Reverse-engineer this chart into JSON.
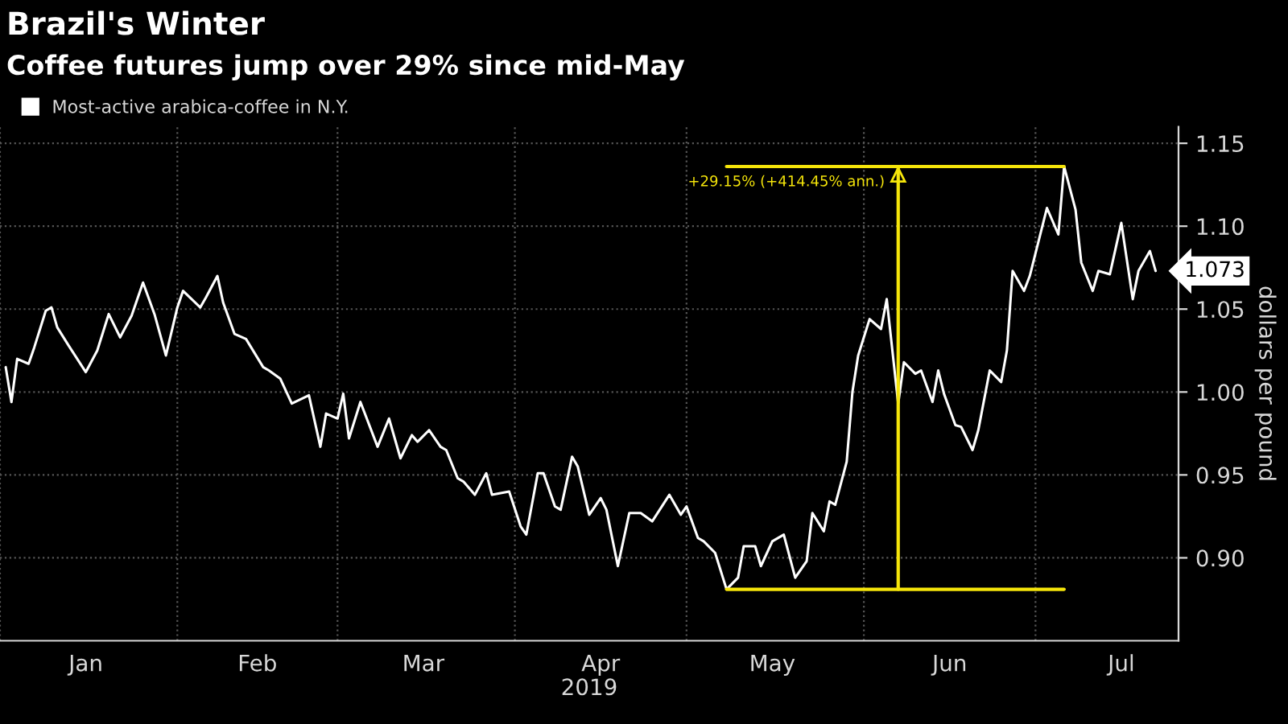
{
  "chart_data": {
    "type": "line",
    "title": "Brazil's Winter",
    "subtitle": "Coffee futures jump over 29% since mid-May",
    "xlabel": "2019",
    "ylabel": "dollars per pound",
    "x": [
      "2019-01-02",
      "2019-01-03",
      "2019-01-04",
      "2019-01-06",
      "2019-01-07",
      "2019-01-09",
      "2019-01-10",
      "2019-01-11",
      "2019-01-13",
      "2019-01-16",
      "2019-01-18",
      "2019-01-20",
      "2019-01-22",
      "2019-01-24",
      "2019-01-26",
      "2019-01-28",
      "2019-01-30",
      "2019-02-01",
      "2019-02-02",
      "2019-02-05",
      "2019-02-06",
      "2019-02-08",
      "2019-02-09",
      "2019-02-11",
      "2019-02-13",
      "2019-02-16",
      "2019-02-17",
      "2019-02-19",
      "2019-02-21",
      "2019-02-24",
      "2019-02-26",
      "2019-02-27",
      "2019-03-01",
      "2019-03-02",
      "2019-03-03",
      "2019-03-05",
      "2019-03-08",
      "2019-03-10",
      "2019-03-12",
      "2019-03-14",
      "2019-03-15",
      "2019-03-17",
      "2019-03-19",
      "2019-03-20",
      "2019-03-22",
      "2019-03-23",
      "2019-03-25",
      "2019-03-27",
      "2019-03-28",
      "2019-03-31",
      "2019-04-02",
      "2019-04-03",
      "2019-04-05",
      "2019-04-06",
      "2019-04-08",
      "2019-04-09",
      "2019-04-11",
      "2019-04-12",
      "2019-04-14",
      "2019-04-16",
      "2019-04-17",
      "2019-04-19",
      "2019-04-21",
      "2019-04-23",
      "2019-04-25",
      "2019-04-28",
      "2019-04-30",
      "2019-05-01",
      "2019-05-03",
      "2019-05-04",
      "2019-05-06",
      "2019-05-08",
      "2019-05-10",
      "2019-05-11",
      "2019-05-13",
      "2019-05-14",
      "2019-05-16",
      "2019-05-18",
      "2019-05-20",
      "2019-05-22",
      "2019-05-23",
      "2019-05-25",
      "2019-05-26",
      "2019-05-27",
      "2019-05-29",
      "2019-05-30",
      "2019-05-31",
      "2019-06-02",
      "2019-06-04",
      "2019-06-05",
      "2019-06-07",
      "2019-06-08",
      "2019-06-10",
      "2019-06-11",
      "2019-06-13",
      "2019-06-14",
      "2019-06-15",
      "2019-06-17",
      "2019-06-18",
      "2019-06-20",
      "2019-06-21",
      "2019-06-23",
      "2019-06-25",
      "2019-06-26",
      "2019-06-27",
      "2019-06-29",
      "2019-06-30",
      "2019-07-03",
      "2019-07-05",
      "2019-07-06",
      "2019-07-08",
      "2019-07-09",
      "2019-07-11",
      "2019-07-12",
      "2019-07-14",
      "2019-07-16",
      "2019-07-18",
      "2019-07-19",
      "2019-07-21",
      "2019-07-22"
    ],
    "series": [
      {
        "name": "Most-active arabica-coffee in N.Y.",
        "color": "#ffffff",
        "values": [
          1.015,
          0.994,
          1.02,
          1.017,
          1.027,
          1.049,
          1.051,
          1.039,
          1.028,
          1.012,
          1.025,
          1.047,
          1.033,
          1.046,
          1.066,
          1.047,
          1.022,
          1.051,
          1.061,
          1.051,
          1.057,
          1.07,
          1.054,
          1.035,
          1.032,
          1.015,
          1.013,
          1.008,
          0.993,
          0.998,
          0.967,
          0.987,
          0.984,
          0.999,
          0.972,
          0.994,
          0.967,
          0.984,
          0.96,
          0.974,
          0.97,
          0.977,
          0.967,
          0.965,
          0.948,
          0.946,
          0.938,
          0.951,
          0.938,
          0.94,
          0.919,
          0.914,
          0.951,
          0.951,
          0.931,
          0.929,
          0.961,
          0.955,
          0.926,
          0.936,
          0.929,
          0.895,
          0.927,
          0.927,
          0.922,
          0.938,
          0.926,
          0.931,
          0.912,
          0.91,
          0.903,
          0.881,
          0.888,
          0.907,
          0.907,
          0.895,
          0.91,
          0.914,
          0.888,
          0.898,
          0.927,
          0.916,
          0.934,
          0.932,
          0.958,
          1.0,
          1.022,
          1.044,
          1.038,
          1.056,
          0.993,
          1.018,
          1.011,
          1.013,
          0.994,
          1.013,
          0.999,
          0.98,
          0.979,
          0.965,
          0.977,
          1.013,
          1.006,
          1.025,
          1.073,
          1.061,
          1.07,
          1.111,
          1.095,
          1.136,
          1.11,
          1.078,
          1.061,
          1.073,
          1.071,
          1.102,
          1.056,
          1.073,
          1.085,
          1.073
        ]
      }
    ],
    "xlim": [
      "2019-01-01",
      "2019-07-26"
    ],
    "xticks": [
      {
        "value": "2019-01-01",
        "label": null
      },
      {
        "value": "2019-01-16",
        "label": "Jan"
      },
      {
        "value": "2019-02-01",
        "label": null
      },
      {
        "value": "2019-02-15",
        "label": "Feb"
      },
      {
        "value": "2019-03-01",
        "label": null
      },
      {
        "value": "2019-03-16",
        "label": "Mar"
      },
      {
        "value": "2019-04-01",
        "label": null
      },
      {
        "value": "2019-04-16",
        "label": "Apr"
      },
      {
        "value": "2019-05-01",
        "label": null
      },
      {
        "value": "2019-05-16",
        "label": "May"
      },
      {
        "value": "2019-06-01",
        "label": null
      },
      {
        "value": "2019-06-16",
        "label": "Jun"
      },
      {
        "value": "2019-07-01",
        "label": null
      },
      {
        "value": "2019-07-16",
        "label": "Jul"
      }
    ],
    "ylim": [
      0.85,
      1.16
    ],
    "yticks": [
      {
        "value": 0.9,
        "label": "0.90"
      },
      {
        "value": 0.95,
        "label": "0.95"
      },
      {
        "value": 1.0,
        "label": "1.00"
      },
      {
        "value": 1.05,
        "label": "1.05"
      },
      {
        "value": 1.1,
        "label": "1.10"
      },
      {
        "value": 1.15,
        "label": "1.15"
      }
    ],
    "ref_lines": [
      {
        "axis": "x",
        "value": "2019-06-07",
        "color": "#f5e50a"
      }
    ],
    "annotations": [
      {
        "text": "+29.15% (+414.45% ann.)",
        "x": "2019-06-07",
        "y": 1.136
      },
      {
        "text": "1.073",
        "x": "2019-07-22",
        "y": 1.073
      }
    ],
    "grid": true,
    "legend": "top left",
    "marker": "none",
    "line_style": "solid"
  }
}
